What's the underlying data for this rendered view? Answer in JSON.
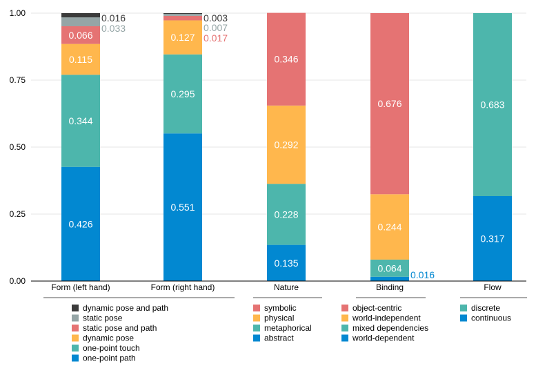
{
  "colors": {
    "dark": "#3b3b3b",
    "gray": "#95a5a6",
    "red": "#e57373",
    "orange": "#ffb74d",
    "teal": "#4db6ac",
    "blue": "#0288d1",
    "axis": "#000000"
  },
  "chart_data": {
    "type": "bar",
    "stacked": true,
    "ylim": [
      0,
      1
    ],
    "yticks": [
      "0.00",
      "0.25",
      "0.50",
      "0.75",
      "1.00"
    ],
    "categories": [
      "Form (left hand)",
      "Form (right hand)",
      "Nature",
      "Binding",
      "Flow"
    ],
    "bars": [
      {
        "category": "Form (left hand)",
        "segments": [
          {
            "label": "one-point path",
            "value": 0.426,
            "color": "blue",
            "text": "0.426"
          },
          {
            "label": "one-point touch",
            "value": 0.344,
            "color": "teal",
            "text": "0.344"
          },
          {
            "label": "dynamic pose",
            "value": 0.115,
            "color": "orange",
            "text": "0.115"
          },
          {
            "label": "static pose and path",
            "value": 0.066,
            "color": "red",
            "text": "0.066"
          },
          {
            "label": "static pose",
            "value": 0.033,
            "color": "gray",
            "text": "0.033",
            "outside": true
          },
          {
            "label": "dynamic pose and path",
            "value": 0.016,
            "color": "dark",
            "text": "0.016",
            "outside": true
          }
        ]
      },
      {
        "category": "Form (right hand)",
        "segments": [
          {
            "label": "one-point path",
            "value": 0.551,
            "color": "blue",
            "text": "0.551"
          },
          {
            "label": "one-point touch",
            "value": 0.295,
            "color": "teal",
            "text": "0.295"
          },
          {
            "label": "dynamic pose",
            "value": 0.127,
            "color": "orange",
            "text": "0.127"
          },
          {
            "label": "static pose and path",
            "value": 0.017,
            "color": "red",
            "text": "0.017",
            "outside": true
          },
          {
            "label": "static pose",
            "value": 0.007,
            "color": "gray",
            "text": "0.007",
            "outside": true
          },
          {
            "label": "dynamic pose and path",
            "value": 0.003,
            "color": "dark",
            "text": "0.003",
            "outside": true
          }
        ]
      },
      {
        "category": "Nature",
        "segments": [
          {
            "label": "abstract",
            "value": 0.135,
            "color": "blue",
            "text": "0.135"
          },
          {
            "label": "metaphorical",
            "value": 0.228,
            "color": "teal",
            "text": "0.228"
          },
          {
            "label": "physical",
            "value": 0.292,
            "color": "orange",
            "text": "0.292"
          },
          {
            "label": "symbolic",
            "value": 0.346,
            "color": "red",
            "text": "0.346"
          }
        ]
      },
      {
        "category": "Binding",
        "segments": [
          {
            "label": "world-dependent",
            "value": 0.016,
            "color": "blue",
            "text": "0.016",
            "outside": true
          },
          {
            "label": "mixed dependencies",
            "value": 0.064,
            "color": "teal",
            "text": "0.064"
          },
          {
            "label": "world-independent",
            "value": 0.244,
            "color": "orange",
            "text": "0.244"
          },
          {
            "label": "object-centric",
            "value": 0.676,
            "color": "red",
            "text": "0.676"
          }
        ]
      },
      {
        "category": "Flow",
        "segments": [
          {
            "label": "continuous",
            "value": 0.317,
            "color": "blue",
            "text": "0.317"
          },
          {
            "label": "discrete",
            "value": 0.683,
            "color": "teal",
            "text": "0.683"
          }
        ]
      }
    ],
    "legends": [
      {
        "group": "Form",
        "items": [
          {
            "label": "dynamic pose and path",
            "color": "dark"
          },
          {
            "label": "static pose",
            "color": "gray"
          },
          {
            "label": "static pose and path",
            "color": "red"
          },
          {
            "label": "dynamic pose",
            "color": "orange"
          },
          {
            "label": "one-point touch",
            "color": "teal"
          },
          {
            "label": "one-point path",
            "color": "blue"
          }
        ]
      },
      {
        "group": "Nature",
        "items": [
          {
            "label": "symbolic",
            "color": "red"
          },
          {
            "label": "physical",
            "color": "orange"
          },
          {
            "label": "metaphorical",
            "color": "teal"
          },
          {
            "label": "abstract",
            "color": "blue"
          }
        ]
      },
      {
        "group": "Binding",
        "items": [
          {
            "label": "object-centric",
            "color": "red"
          },
          {
            "label": "world-independent",
            "color": "orange"
          },
          {
            "label": "mixed dependencies",
            "color": "teal"
          },
          {
            "label": "world-dependent",
            "color": "blue"
          }
        ]
      },
      {
        "group": "Flow",
        "items": [
          {
            "label": "discrete",
            "color": "teal"
          },
          {
            "label": "continuous",
            "color": "blue"
          }
        ]
      }
    ]
  }
}
